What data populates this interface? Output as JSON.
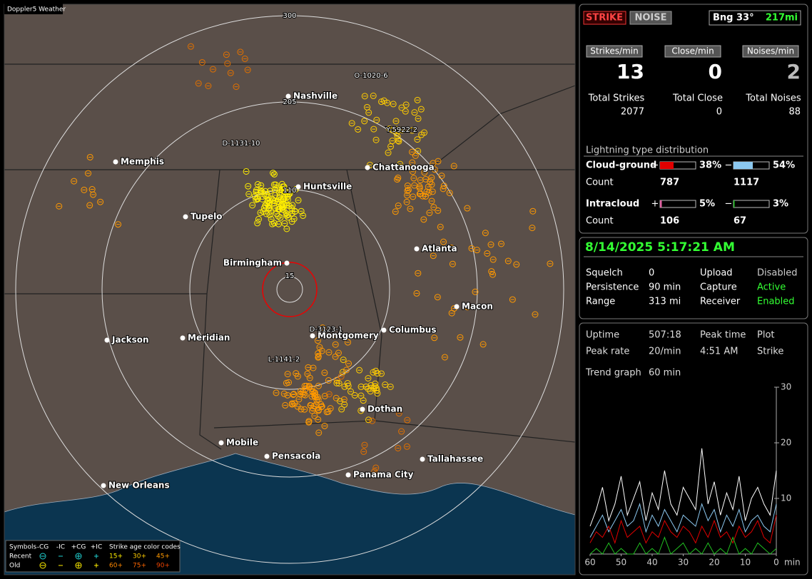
{
  "map": {
    "title": "Doppler5 Weather",
    "range_labels": [
      "300",
      "205",
      "110",
      "15"
    ],
    "cities": [
      "Nashville",
      "Memphis",
      "Huntsville",
      "Chattanooga",
      "Tupelo",
      "Atlanta",
      "Birmingham",
      "Macon",
      "Jackson",
      "Meridian",
      "Montgomery",
      "Columbus",
      "Dothan",
      "Mobile",
      "Pensacola",
      "Tallahassee",
      "Panama City",
      "New Orleans"
    ],
    "strike_labels": [
      "O-1020-6",
      "Y-5922-2",
      "D-1131-10",
      "D-3123-1",
      "L-1141-2"
    ],
    "legend": {
      "symbols_label": "Symbols",
      "symbols": [
        "-CG",
        "-IC",
        "+CG",
        "+IC"
      ],
      "age_label": "Strike age color codes",
      "rows": [
        {
          "name": "Recent",
          "ages": [
            "15+",
            "30+",
            "45+"
          ]
        },
        {
          "name": "Old",
          "ages": [
            "60+",
            "75+",
            "90+"
          ]
        }
      ]
    }
  },
  "status": {
    "buttons": [
      "STRIKE",
      "NOISE"
    ],
    "bearing": "Bng 33°",
    "distance": "217mi"
  },
  "rates": [
    {
      "label": "Strikes/min",
      "value": 13,
      "total_label": "Total Strikes",
      "total": 2077
    },
    {
      "label": "Close/min",
      "value": 0,
      "total_label": "Total Close",
      "total": 0
    },
    {
      "label": "Noises/min",
      "value": 2,
      "total_label": "Total Noises",
      "total": 88
    }
  ],
  "distribution": {
    "title": "Lightning type distribution",
    "count_label": "Count",
    "rows": [
      {
        "name": "Cloud-ground",
        "positive": {
          "sign": "+",
          "value": 38,
          "label": "38%",
          "count": 787,
          "color": "#e00000"
        },
        "negative": {
          "sign": "−",
          "value": 54,
          "label": "54%",
          "count": 1117,
          "color": "#8cc8f0"
        }
      },
      {
        "name": "Intracloud",
        "positive": {
          "sign": "+",
          "value": 5,
          "label": "5%",
          "count": 106,
          "color": "#e060a0"
        },
        "negative": {
          "sign": "−",
          "value": 3,
          "label": "3%",
          "count": 67,
          "color": "#20c020"
        }
      }
    ]
  },
  "clock": {
    "datetime": "8/14/2025 5:17:21 AM",
    "settings": [
      [
        "Squelch",
        "0",
        "Upload",
        "Disabled"
      ],
      [
        "Persistence",
        "90 min",
        "Capture",
        "Active"
      ],
      [
        "Range",
        "313 mi",
        "Receiver",
        "Enabled"
      ]
    ]
  },
  "stats": {
    "rows": [
      [
        "Uptime",
        "507:18",
        "Peak time",
        "Plot"
      ],
      [
        "Peak rate",
        "20/min",
        "4:51 AM",
        "Strike"
      ]
    ],
    "trend_label": "Trend graph",
    "trend_value": "60 min"
  },
  "chart_data": {
    "type": "line",
    "xlabel": "min",
    "x": [
      60,
      58,
      56,
      54,
      52,
      50,
      48,
      46,
      44,
      42,
      40,
      38,
      36,
      34,
      32,
      30,
      28,
      26,
      24,
      22,
      20,
      18,
      16,
      14,
      12,
      10,
      8,
      6,
      4,
      2,
      0
    ],
    "xlim": [
      60,
      0
    ],
    "xticks": [
      60,
      50,
      40,
      30,
      20,
      10,
      0
    ],
    "ylim": [
      0,
      30
    ],
    "yticks": [
      10,
      20,
      30
    ],
    "series": [
      {
        "color": "#ffffff",
        "values": [
          5,
          8,
          12,
          6,
          9,
          14,
          7,
          10,
          13,
          6,
          11,
          8,
          15,
          9,
          7,
          12,
          10,
          8,
          19,
          9,
          13,
          7,
          11,
          8,
          14,
          6,
          10,
          12,
          9,
          7,
          15
        ]
      },
      {
        "color": "#8cc8f0",
        "values": [
          3,
          5,
          7,
          4,
          6,
          8,
          5,
          6,
          9,
          4,
          7,
          5,
          8,
          6,
          4,
          7,
          6,
          5,
          9,
          6,
          8,
          4,
          7,
          5,
          8,
          4,
          6,
          7,
          5,
          4,
          9
        ]
      },
      {
        "color": "#e00000",
        "values": [
          2,
          4,
          3,
          5,
          2,
          6,
          3,
          4,
          5,
          2,
          4,
          3,
          6,
          4,
          3,
          5,
          4,
          2,
          5,
          3,
          6,
          3,
          4,
          2,
          5,
          3,
          4,
          6,
          3,
          2,
          7
        ]
      },
      {
        "color": "#20c020",
        "values": [
          0,
          1,
          0,
          2,
          0,
          1,
          0,
          0,
          2,
          0,
          1,
          0,
          3,
          0,
          1,
          2,
          0,
          1,
          0,
          2,
          0,
          1,
          0,
          3,
          0,
          1,
          0,
          2,
          1,
          0,
          1
        ]
      }
    ]
  }
}
